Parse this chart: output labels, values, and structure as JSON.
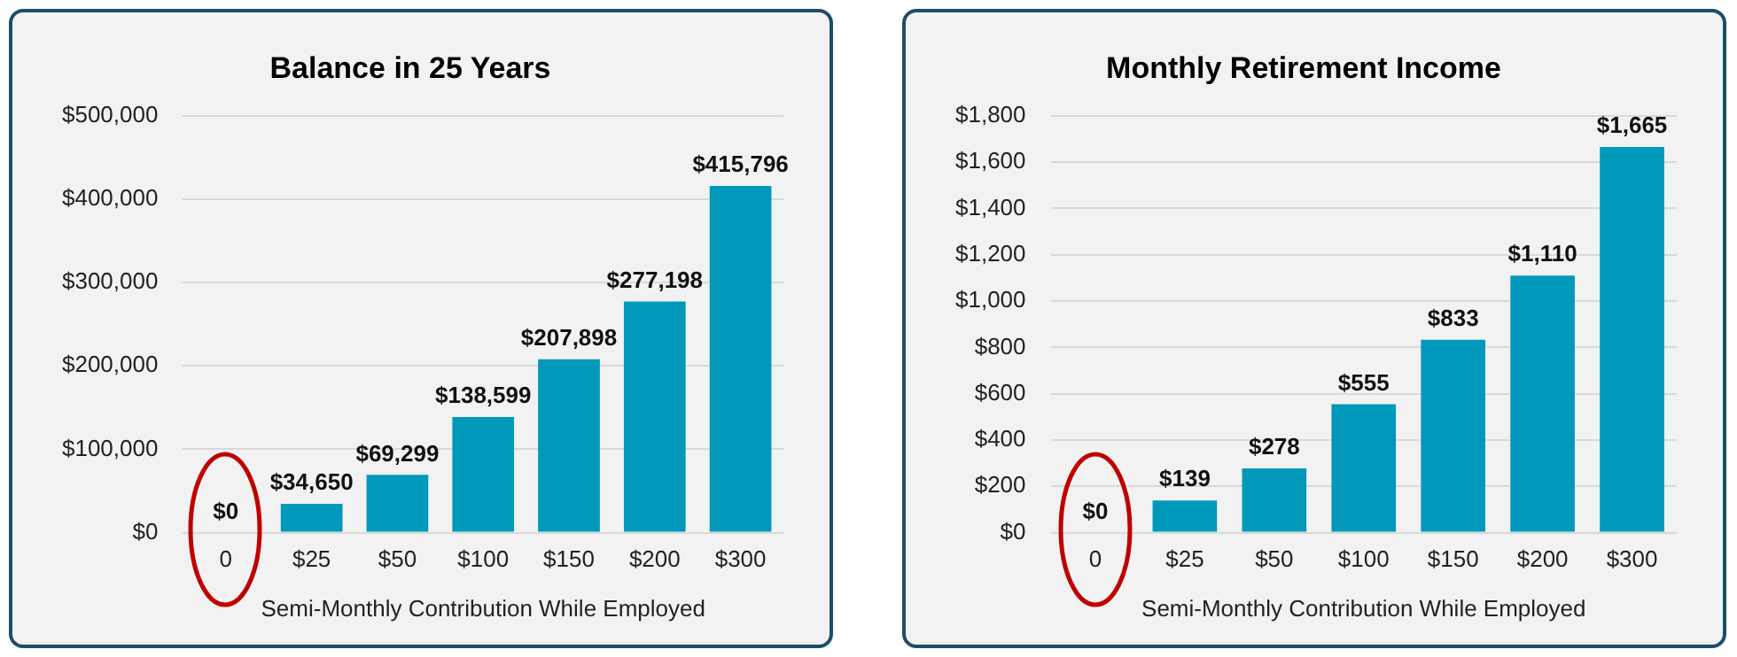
{
  "chart_data": [
    {
      "type": "bar",
      "title": "Balance in 25 Years",
      "xlabel": "Semi-Monthly Contribution While Employed",
      "categories": [
        "0",
        "$25",
        "$50",
        "$100",
        "$150",
        "$200",
        "$300"
      ],
      "values": [
        0,
        34650,
        69299,
        138599,
        207898,
        277198,
        415796
      ],
      "value_labels": [
        "$0",
        "$34,650",
        "$69,299",
        "$138,599",
        "$207,898",
        "$277,198",
        "$415,796"
      ],
      "color": "#0099bb",
      "ylim": [
        0,
        500000
      ],
      "yticks": [
        {
          "value": 0,
          "label": "$0"
        },
        {
          "value": 100000,
          "label": "$100,000"
        },
        {
          "value": 200000,
          "label": "$200,000"
        },
        {
          "value": 300000,
          "label": "$300,000"
        },
        {
          "value": 400000,
          "label": "$400,000"
        },
        {
          "value": 500000,
          "label": "$500,000"
        }
      ],
      "grid": "y",
      "legend": false
    },
    {
      "type": "bar",
      "title": "Monthly Retirement Income",
      "xlabel": "Semi-Monthly Contribution While Employed",
      "categories": [
        "0",
        "$25",
        "$50",
        "$100",
        "$150",
        "$200",
        "$300"
      ],
      "values": [
        0,
        139,
        278,
        555,
        833,
        1110,
        1665
      ],
      "value_labels": [
        "$0",
        "$139",
        "$278",
        "$555",
        "$833",
        "$1,110",
        "$1,665"
      ],
      "color": "#0099bb",
      "ylim": [
        0,
        1800
      ],
      "yticks": [
        {
          "value": 0,
          "label": "$0"
        },
        {
          "value": 200,
          "label": "$200"
        },
        {
          "value": 400,
          "label": "$400"
        },
        {
          "value": 600,
          "label": "$600"
        },
        {
          "value": 800,
          "label": "$800"
        },
        {
          "value": 1000,
          "label": "$1,000"
        },
        {
          "value": 1200,
          "label": "$1,200"
        },
        {
          "value": 1400,
          "label": "$1,400"
        },
        {
          "value": 1600,
          "label": "$1,600"
        },
        {
          "value": 1800,
          "label": "$1,800"
        }
      ],
      "grid": "y",
      "legend": false
    }
  ]
}
